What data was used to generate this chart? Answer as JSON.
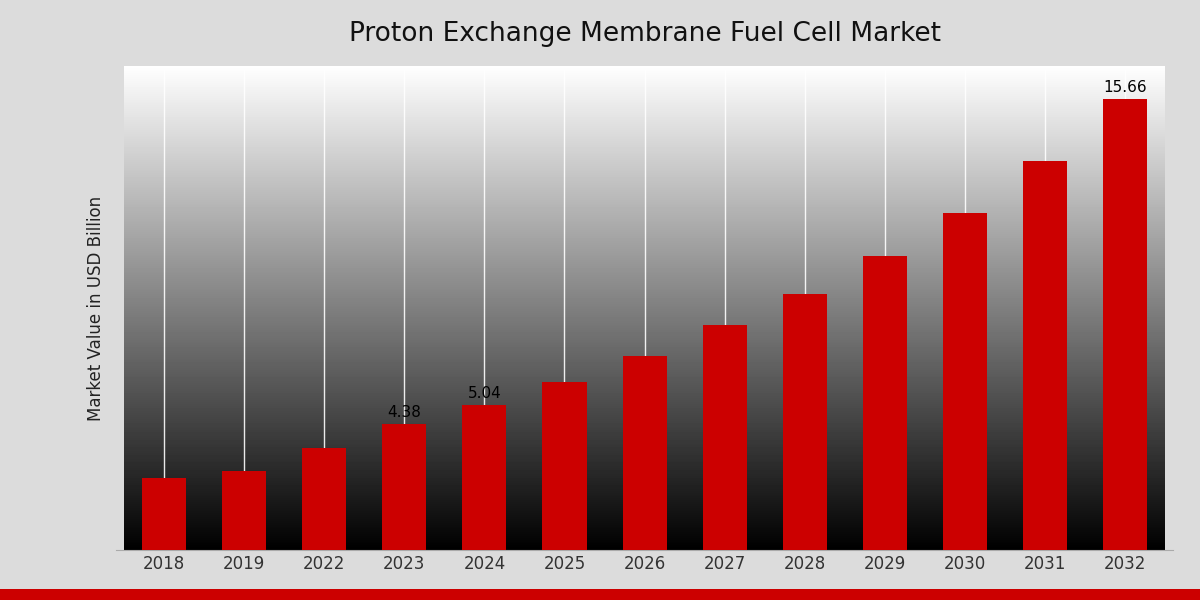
{
  "title": "Proton Exchange Membrane Fuel Cell Market",
  "ylabel": "Market Value in USD Billion",
  "background_color": "#dcdcdc",
  "bar_color": "#cc0000",
  "categories": [
    "2018",
    "2019",
    "2022",
    "2023",
    "2024",
    "2025",
    "2026",
    "2027",
    "2028",
    "2029",
    "2030",
    "2031",
    "2032"
  ],
  "values": [
    2.5,
    2.75,
    3.55,
    4.38,
    5.04,
    5.85,
    6.75,
    7.8,
    8.9,
    10.2,
    11.7,
    13.5,
    15.66
  ],
  "labeled_bars": {
    "2023": "4.38",
    "2024": "5.04",
    "2032": "15.66"
  },
  "ylim": [
    0,
    16.8
  ],
  "title_fontsize": 19,
  "label_fontsize": 11,
  "tick_fontsize": 12,
  "ylabel_fontsize": 12,
  "bar_width": 0.55
}
